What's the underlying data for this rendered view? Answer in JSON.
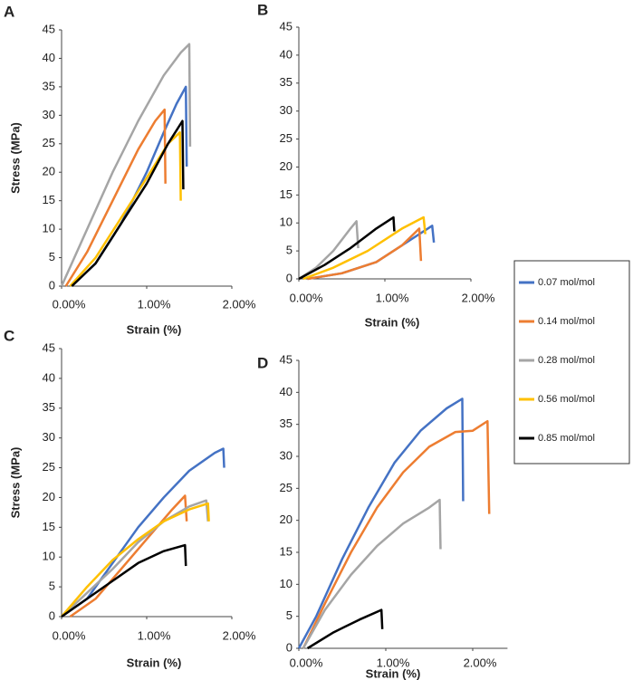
{
  "chart_data": [
    {
      "type": "line",
      "title": "A",
      "xlabel": "Strain (%)",
      "ylabel": "Stress (MPa)",
      "xlim": [
        0,
        2
      ],
      "xticks": [
        {
          "value": 0,
          "label": "0.00%"
        },
        {
          "value": 1,
          "label": "1.00%"
        },
        {
          "value": 2,
          "label": "2.00%"
        }
      ],
      "ylim": [
        0,
        45
      ],
      "yticks": [
        0,
        5,
        10,
        15,
        20,
        25,
        30,
        35,
        40,
        45
      ],
      "series": [
        {
          "color": "#4472c4",
          "x": [
            0.12,
            0.4,
            0.7,
            1.0,
            1.2,
            1.35,
            1.46,
            1.47
          ],
          "values": [
            0,
            4,
            11,
            20,
            27,
            32,
            35,
            21
          ]
        },
        {
          "color": "#ed7d31",
          "x": [
            0.05,
            0.3,
            0.6,
            0.9,
            1.1,
            1.21,
            1.22
          ],
          "values": [
            0,
            6,
            15,
            24,
            29,
            31,
            18
          ]
        },
        {
          "color": "#a5a5a5",
          "x": [
            0,
            0.3,
            0.6,
            0.9,
            1.2,
            1.4,
            1.5,
            1.51
          ],
          "values": [
            0,
            10,
            20,
            29,
            37,
            41,
            42.5,
            24.5
          ]
        },
        {
          "color": "#ffc000",
          "x": [
            0.1,
            0.4,
            0.7,
            1.0,
            1.25,
            1.39,
            1.4
          ],
          "values": [
            0,
            5,
            12,
            19,
            25,
            27,
            15
          ]
        },
        {
          "color": "#000000",
          "x": [
            0.12,
            0.4,
            0.7,
            1.0,
            1.25,
            1.42,
            1.43
          ],
          "values": [
            0,
            4,
            11,
            18,
            25,
            29,
            17
          ]
        }
      ]
    },
    {
      "type": "line",
      "title": "B",
      "xlabel": "Strain (%)",
      "xlim": [
        0,
        2
      ],
      "xticks": [
        {
          "value": 0,
          "label": "0.00%"
        },
        {
          "value": 1,
          "label": "1.00%"
        },
        {
          "value": 2,
          "label": "2.00%"
        }
      ],
      "ylim": [
        0,
        45
      ],
      "yticks": [
        0,
        5,
        10,
        15,
        20,
        25,
        30,
        35,
        40,
        45
      ],
      "series": [
        {
          "color": "#4472c4",
          "x": [
            0.1,
            0.5,
            0.9,
            1.3,
            1.55,
            1.57
          ],
          "values": [
            0,
            1,
            3,
            7,
            9.5,
            6.5
          ]
        },
        {
          "color": "#ed7d31",
          "x": [
            0.1,
            0.5,
            0.9,
            1.2,
            1.4,
            1.42
          ],
          "values": [
            0,
            1,
            3,
            6,
            9,
            3.2
          ]
        },
        {
          "color": "#a5a5a5",
          "x": [
            0,
            0.2,
            0.4,
            0.6,
            0.67,
            0.69
          ],
          "values": [
            0,
            2,
            5,
            9,
            10.3,
            5.5
          ]
        },
        {
          "color": "#ffc000",
          "x": [
            0.05,
            0.4,
            0.8,
            1.2,
            1.45,
            1.47
          ],
          "values": [
            0,
            2,
            5,
            9,
            11,
            8
          ]
        },
        {
          "color": "#000000",
          "x": [
            0,
            0.3,
            0.6,
            0.9,
            1.1,
            1.11
          ],
          "values": [
            0,
            2.5,
            5.5,
            9,
            11,
            8.5
          ]
        }
      ]
    },
    {
      "type": "line",
      "title": "C",
      "xlabel": "Strain (%)",
      "ylabel": "Stress (MPa)",
      "xlim": [
        0,
        2
      ],
      "xticks": [
        {
          "value": 0,
          "label": "0.00%"
        },
        {
          "value": 1,
          "label": "1.00%"
        },
        {
          "value": 2,
          "label": "2.00%"
        }
      ],
      "ylim": [
        0,
        45
      ],
      "yticks": [
        0,
        5,
        10,
        15,
        20,
        25,
        30,
        35,
        40,
        45
      ],
      "series": [
        {
          "color": "#4472c4",
          "x": [
            0,
            0.3,
            0.6,
            0.9,
            1.2,
            1.5,
            1.8,
            1.9,
            1.91
          ],
          "values": [
            0,
            3,
            9,
            15,
            20,
            24.5,
            27.5,
            28.2,
            25
          ]
        },
        {
          "color": "#ed7d31",
          "x": [
            0.1,
            0.4,
            0.7,
            1.0,
            1.3,
            1.45,
            1.47
          ],
          "values": [
            0,
            3,
            8,
            13,
            18,
            20.3,
            16
          ]
        },
        {
          "color": "#a5a5a5",
          "x": [
            0,
            0.3,
            0.6,
            0.9,
            1.2,
            1.5,
            1.7,
            1.72
          ],
          "values": [
            0,
            4,
            8,
            12.5,
            16,
            18.5,
            19.5,
            16
          ]
        },
        {
          "color": "#ffc000",
          "x": [
            0,
            0.3,
            0.6,
            0.9,
            1.2,
            1.5,
            1.72,
            1.73
          ],
          "values": [
            0,
            5,
            9.5,
            13,
            16,
            18,
            19,
            16
          ]
        },
        {
          "color": "#000000",
          "x": [
            0,
            0.3,
            0.6,
            0.9,
            1.2,
            1.45,
            1.46
          ],
          "values": [
            0,
            3,
            6,
            9,
            11,
            12,
            8.5
          ]
        }
      ]
    },
    {
      "type": "line",
      "title": "D",
      "xlabel": "Strain (%)",
      "xlim": [
        0,
        2.4
      ],
      "xticks": [
        {
          "value": 0,
          "label": "0.00%"
        },
        {
          "value": 1,
          "label": "1.00%"
        },
        {
          "value": 2,
          "label": "2.00%"
        }
      ],
      "ylim": [
        0,
        45
      ],
      "yticks": [
        0,
        5,
        10,
        15,
        20,
        25,
        30,
        35,
        40,
        45
      ],
      "series": [
        {
          "color": "#4472c4",
          "x": [
            0,
            0.2,
            0.5,
            0.8,
            1.1,
            1.4,
            1.7,
            1.88,
            1.89
          ],
          "values": [
            0,
            5,
            14,
            22,
            29,
            34,
            37.5,
            39,
            23
          ]
        },
        {
          "color": "#ed7d31",
          "x": [
            0.05,
            0.3,
            0.6,
            0.9,
            1.2,
            1.5,
            1.8,
            2.0,
            2.17,
            2.19
          ],
          "values": [
            0,
            7,
            15,
            22,
            27.5,
            31.5,
            33.8,
            34,
            35.5,
            21
          ]
        },
        {
          "color": "#a5a5a5",
          "x": [
            0.05,
            0.3,
            0.6,
            0.9,
            1.2,
            1.5,
            1.62,
            1.63
          ],
          "values": [
            0,
            6,
            11.5,
            16,
            19.5,
            22,
            23.2,
            15.5
          ]
        },
        {
          "color": "#000000",
          "x": [
            0.1,
            0.4,
            0.7,
            0.95,
            0.96
          ],
          "values": [
            0,
            2.5,
            4.5,
            6,
            3
          ]
        }
      ]
    }
  ],
  "legend": [
    {
      "name": "0.07 mol/mol",
      "color": "#4472c4"
    },
    {
      "name": "0.14 mol/mol",
      "color": "#ed7d31"
    },
    {
      "name": "0.28 mol/mol",
      "color": "#a5a5a5"
    },
    {
      "name": "0.56 mol/mol",
      "color": "#ffc000"
    },
    {
      "name": "0.85 mol/mol",
      "color": "#000000"
    }
  ]
}
